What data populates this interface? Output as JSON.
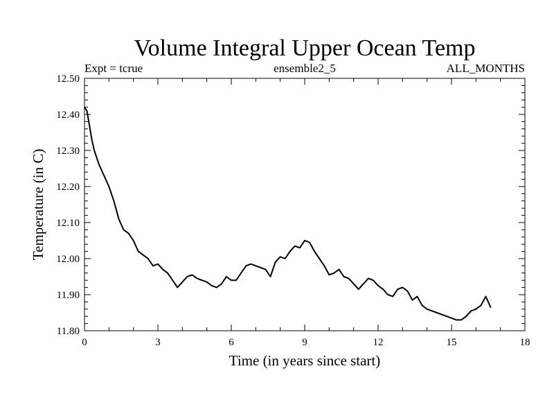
{
  "chart_data": {
    "type": "line",
    "title": "Volume Integral Upper Ocean Temp",
    "subtitle_left": "Expt = tcrue",
    "subtitle_center": "ensemble2_5",
    "subtitle_right": "ALL_MONTHS",
    "xlabel": "Time (in years since start)",
    "ylabel": "Temperature (in C)",
    "xlim": [
      0,
      18
    ],
    "ylim": [
      11.8,
      12.5
    ],
    "x_ticks": [
      "0",
      "3",
      "6",
      "9",
      "12",
      "15",
      "18"
    ],
    "y_ticks": [
      "11.80",
      "11.90",
      "12.00",
      "12.10",
      "12.20",
      "12.30",
      "12.40",
      "12.50"
    ],
    "grid": false,
    "line_color": "#000000",
    "series": [
      {
        "name": "Upper Ocean Temp",
        "x": [
          0.0,
          0.1,
          0.2,
          0.3,
          0.4,
          0.6,
          0.8,
          1.0,
          1.2,
          1.4,
          1.6,
          1.8,
          2.0,
          2.2,
          2.4,
          2.6,
          2.8,
          3.0,
          3.2,
          3.4,
          3.6,
          3.8,
          4.0,
          4.2,
          4.4,
          4.6,
          4.8,
          5.0,
          5.2,
          5.4,
          5.6,
          5.8,
          6.0,
          6.2,
          6.4,
          6.6,
          6.8,
          7.0,
          7.2,
          7.4,
          7.6,
          7.8,
          8.0,
          8.2,
          8.4,
          8.6,
          8.8,
          9.0,
          9.2,
          9.4,
          9.6,
          9.8,
          10.0,
          10.2,
          10.4,
          10.6,
          10.8,
          11.0,
          11.2,
          11.4,
          11.6,
          11.8,
          12.0,
          12.2,
          12.4,
          12.6,
          12.8,
          13.0,
          13.2,
          13.4,
          13.6,
          13.8,
          14.0,
          14.2,
          14.4,
          14.6,
          14.8,
          15.0,
          15.2,
          15.4,
          15.6,
          15.8,
          16.0,
          16.2,
          16.4,
          16.6
        ],
        "values": [
          12.42,
          12.41,
          12.37,
          12.33,
          12.3,
          12.26,
          12.23,
          12.2,
          12.16,
          12.11,
          12.08,
          12.07,
          12.05,
          12.02,
          12.01,
          12.0,
          11.98,
          11.985,
          11.97,
          11.96,
          11.94,
          11.92,
          11.935,
          11.95,
          11.955,
          11.945,
          11.94,
          11.935,
          11.925,
          11.92,
          11.93,
          11.95,
          11.94,
          11.94,
          11.96,
          11.98,
          11.985,
          11.98,
          11.975,
          11.97,
          11.95,
          11.99,
          12.005,
          12.0,
          12.02,
          12.035,
          12.03,
          12.05,
          12.045,
          12.02,
          12.0,
          11.98,
          11.955,
          11.96,
          11.97,
          11.95,
          11.945,
          11.93,
          11.915,
          11.93,
          11.945,
          11.94,
          11.925,
          11.915,
          11.9,
          11.895,
          11.915,
          11.92,
          11.91,
          11.885,
          11.895,
          11.87,
          11.86,
          11.855,
          11.85,
          11.845,
          11.84,
          11.835,
          11.83,
          11.83,
          11.84,
          11.855,
          11.86,
          11.87,
          11.895,
          11.865
        ]
      }
    ]
  }
}
